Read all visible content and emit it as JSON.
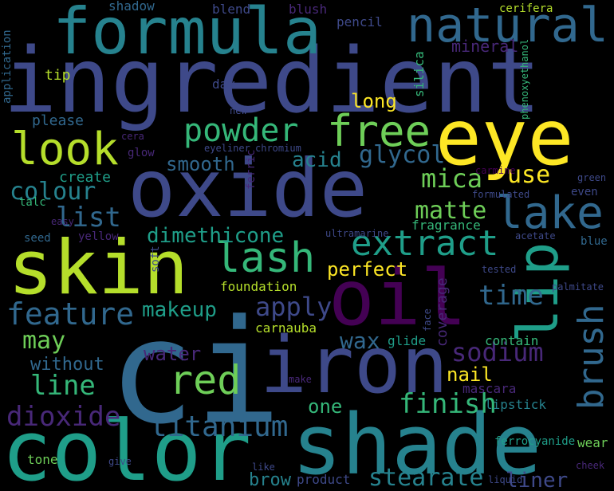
{
  "palette": {
    "background": "#000000",
    "dark_purple": "#440154",
    "purple": "#482878",
    "indigo": "#3e4989",
    "blue": "#31688e",
    "teal_blue": "#26828e",
    "teal": "#1f9e89",
    "green": "#35b779",
    "light_green": "#6ece58",
    "lime": "#b5de2b",
    "yellow": "#fde725"
  },
  "words": [
    {
      "text": "ingredient",
      "color": "#3e4989"
    },
    {
      "text": "oxide",
      "color": "#3e4989"
    },
    {
      "text": "color",
      "color": "#1f9e89"
    },
    {
      "text": "shade",
      "color": "#26828e"
    },
    {
      "text": "iron",
      "color": "#3e4989"
    },
    {
      "text": "ci",
      "color": "#31688e"
    },
    {
      "text": "oil",
      "color": "#440154"
    },
    {
      "text": "skin",
      "color": "#b5de2b"
    },
    {
      "text": "eye",
      "color": "#fde725"
    },
    {
      "text": "formula",
      "color": "#26828e"
    },
    {
      "text": "natural",
      "color": "#31688e"
    },
    {
      "text": "lip",
      "color": "#1f9e89"
    },
    {
      "text": "look",
      "color": "#b5de2b"
    },
    {
      "text": "free",
      "color": "#6ece58"
    },
    {
      "text": "powder",
      "color": "#35b779"
    },
    {
      "text": "lake",
      "color": "#31688e"
    },
    {
      "text": "lash",
      "color": "#35b779"
    },
    {
      "text": "extract",
      "color": "#1f9e89"
    },
    {
      "text": "red",
      "color": "#6ece58"
    },
    {
      "text": "brush",
      "color": "#31688e"
    },
    {
      "text": "titanium",
      "color": "#31688e"
    },
    {
      "text": "dioxide",
      "color": "#482878"
    },
    {
      "text": "feature",
      "color": "#31688e"
    },
    {
      "text": "stearate",
      "color": "#26828e"
    },
    {
      "text": "finish",
      "color": "#35b779"
    },
    {
      "text": "line",
      "color": "#35b779"
    },
    {
      "text": "sodium",
      "color": "#482878"
    },
    {
      "text": "apply",
      "color": "#3e4989"
    },
    {
      "text": "makeup",
      "color": "#1f9e89"
    },
    {
      "text": "may",
      "color": "#6ece58"
    },
    {
      "text": "time",
      "color": "#31688e"
    },
    {
      "text": "mica",
      "color": "#6ece58"
    },
    {
      "text": "glycol",
      "color": "#31688e"
    },
    {
      "text": "matte",
      "color": "#6ece58"
    },
    {
      "text": "use",
      "color": "#fde725"
    },
    {
      "text": "list",
      "color": "#31688e"
    },
    {
      "text": "colour",
      "color": "#26828e"
    },
    {
      "text": "smooth",
      "color": "#31688e"
    },
    {
      "text": "acid",
      "color": "#26828e"
    },
    {
      "text": "dimethicone",
      "color": "#1f9e89"
    },
    {
      "text": "perfect",
      "color": "#fde725"
    },
    {
      "text": "wax",
      "color": "#31688e"
    },
    {
      "text": "coverage",
      "color": "#482878"
    },
    {
      "text": "nail",
      "color": "#fde725"
    },
    {
      "text": "water",
      "color": "#482878"
    },
    {
      "text": "without",
      "color": "#31688e"
    },
    {
      "text": "one",
      "color": "#35b779"
    },
    {
      "text": "brow",
      "color": "#26828e"
    },
    {
      "text": "liner",
      "color": "#3e4989"
    },
    {
      "text": "long",
      "color": "#fde725"
    },
    {
      "text": "mineral",
      "color": "#482878"
    },
    {
      "text": "please",
      "color": "#31688e"
    },
    {
      "text": "create",
      "color": "#1f9e89"
    },
    {
      "text": "fragrance",
      "color": "#35b779"
    },
    {
      "text": "foundation",
      "color": "#b5de2b"
    },
    {
      "text": "carnauba",
      "color": "#b5de2b"
    },
    {
      "text": "glide",
      "color": "#1f9e89"
    },
    {
      "text": "contain",
      "color": "#35b779"
    },
    {
      "text": "mascara",
      "color": "#482878"
    },
    {
      "text": "lipstick",
      "color": "#26828e"
    },
    {
      "text": "wear",
      "color": "#6ece58"
    },
    {
      "text": "tone",
      "color": "#6ece58"
    },
    {
      "text": "product",
      "color": "#3e4989"
    },
    {
      "text": "ferrocyanide",
      "color": "#1f9e89"
    },
    {
      "text": "shadow",
      "color": "#31688e"
    },
    {
      "text": "blend",
      "color": "#3e4989"
    },
    {
      "text": "blush",
      "color": "#482878"
    },
    {
      "text": "pencil",
      "color": "#3e4989"
    },
    {
      "text": "cerifera",
      "color": "#b5de2b"
    },
    {
      "text": "phenoxyethanol",
      "color": "#35b779"
    },
    {
      "text": "application",
      "color": "#31688e"
    },
    {
      "text": "tip",
      "color": "#b5de2b"
    },
    {
      "text": "day",
      "color": "#3e4989"
    },
    {
      "text": "silica",
      "color": "#35b779"
    },
    {
      "text": "new",
      "color": "#3e4989"
    },
    {
      "text": "cera",
      "color": "#482878"
    },
    {
      "text": "glow",
      "color": "#482878"
    },
    {
      "text": "eyeliner",
      "color": "#3e4989"
    },
    {
      "text": "chromium",
      "color": "#3e4989"
    },
    {
      "text": "ferric",
      "color": "#482878"
    },
    {
      "text": "carmine",
      "color": "#440154"
    },
    {
      "text": "green",
      "color": "#3e4989"
    },
    {
      "text": "formulated",
      "color": "#3e4989"
    },
    {
      "text": "even",
      "color": "#3e4989"
    },
    {
      "text": "talc",
      "color": "#35b779"
    },
    {
      "text": "easy",
      "color": "#482878"
    },
    {
      "text": "seed",
      "color": "#31688e"
    },
    {
      "text": "yellow",
      "color": "#482878"
    },
    {
      "text": "ultramarine",
      "color": "#3e4989"
    },
    {
      "text": "acetate",
      "color": "#3e4989"
    },
    {
      "text": "soft",
      "color": "#3e4989"
    },
    {
      "text": "blue",
      "color": "#31688e"
    },
    {
      "text": "tested",
      "color": "#3e4989"
    },
    {
      "text": "palmitate",
      "color": "#3e4989"
    },
    {
      "text": "face",
      "color": "#3e4989"
    },
    {
      "text": "make",
      "color": "#482878"
    },
    {
      "text": "like",
      "color": "#3e4989"
    },
    {
      "text": "give",
      "color": "#3e4989"
    },
    {
      "text": "liquid",
      "color": "#3e4989"
    },
    {
      "text": "cheek",
      "color": "#482878"
    }
  ]
}
